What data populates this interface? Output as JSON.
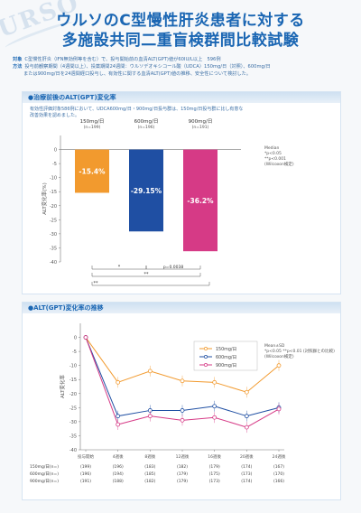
{
  "title_line1": "ウルソのC型慢性肝炎患者に対する",
  "title_line2": "多施設共同二重盲検群間比較試験",
  "meta": {
    "line1_key": "対象",
    "line1": "C型慢性肝炎（IFN無効例等を含む）で、投与開始前の血清ALT(GPT)値が60IU/L以上　596例",
    "line2_key": "方法",
    "line2a": "投与前観察期間（4週間以上）、投薬期間24週間：ウルソデオキシコール酸（UDCA）150mg/日（対照）、600mg/日",
    "line2b": "または900mg/日を24週間経口投与し、有効性に関する血清ALT(GPT)値の推移、安全性について検討した。"
  },
  "panel1": {
    "heading": "●治療前後のALT(GPT)変化率",
    "desc1": "有効性評価対象586例において、UDCA600mg/日・900mg/日投与群は、150mg/日投与群に比し有意な",
    "desc2": "改善効果を認めました。"
  },
  "panel2": {
    "heading": "●ALT(GPT)変化率の推移"
  },
  "chart_data": [
    {
      "type": "bar",
      "ylabel": "ALT変化率(%)",
      "ylim": [
        -40,
        5
      ],
      "yticks": [
        "0",
        "-5",
        "-10",
        "-15",
        "-20",
        "-25",
        "-30",
        "-35",
        "-40"
      ],
      "categories": [
        "150mg/日",
        "600mg/日",
        "900mg/日"
      ],
      "n_labels": [
        "(n=199)",
        "(n=196)",
        "(n=191)"
      ],
      "values": [
        -15.4,
        -29.15,
        -36.2
      ],
      "value_labels": [
        "-15.4%",
        "-29.15%",
        "-36.2%"
      ],
      "colors": [
        "#f29a2e",
        "#1f4fa3",
        "#d63a86"
      ],
      "legend": [
        "Median",
        "*p<0.05",
        "**p<0.001",
        "(Wilcoxon検定)"
      ],
      "sig_labels": [
        "*",
        "p=0.0038",
        "**",
        "**"
      ]
    },
    {
      "type": "line",
      "ylabel": "ALT変化率",
      "ylim": [
        -40,
        5
      ],
      "yticks": [
        "0",
        "-5",
        "-10",
        "-15",
        "-20",
        "-25",
        "-30",
        "-35",
        "-40"
      ],
      "x": [
        "投与開始",
        "4週後",
        "8週後",
        "12週後",
        "16週後",
        "20週後",
        "24週後"
      ],
      "series": [
        {
          "name": "150mg/日",
          "color": "#f29a2e",
          "values": [
            0,
            -16,
            -12,
            -15.5,
            -16,
            -19.5,
            -10
          ]
        },
        {
          "name": "600mg/日",
          "color": "#1f4fa3",
          "values": [
            0,
            -28,
            -26,
            -26,
            -24.5,
            -28,
            -25
          ]
        },
        {
          "name": "900mg/日",
          "color": "#d63a86",
          "values": [
            0,
            -31,
            -28,
            -29.5,
            -28.5,
            -32,
            -25.5
          ]
        }
      ],
      "legend_note": [
        "Mean±SD",
        "*p<0.05 **p<0.01 (対照群との比較)",
        "(Wilcoxon検定)"
      ],
      "n_table": {
        "rows": [
          {
            "label": "150mg/日(n=)",
            "values": [
              "(199)",
              "(196)",
              "(183)",
              "(182)",
              "(179)",
              "(174)",
              "(167)"
            ]
          },
          {
            "label": "600mg/日(n=)",
            "values": [
              "(196)",
              "(194)",
              "(185)",
              "(179)",
              "(175)",
              "(173)",
              "(170)"
            ]
          },
          {
            "label": "900mg/日(n=)",
            "values": [
              "(191)",
              "(188)",
              "(182)",
              "(179)",
              "(173)",
              "(174)",
              "(166)"
            ]
          }
        ]
      }
    }
  ]
}
